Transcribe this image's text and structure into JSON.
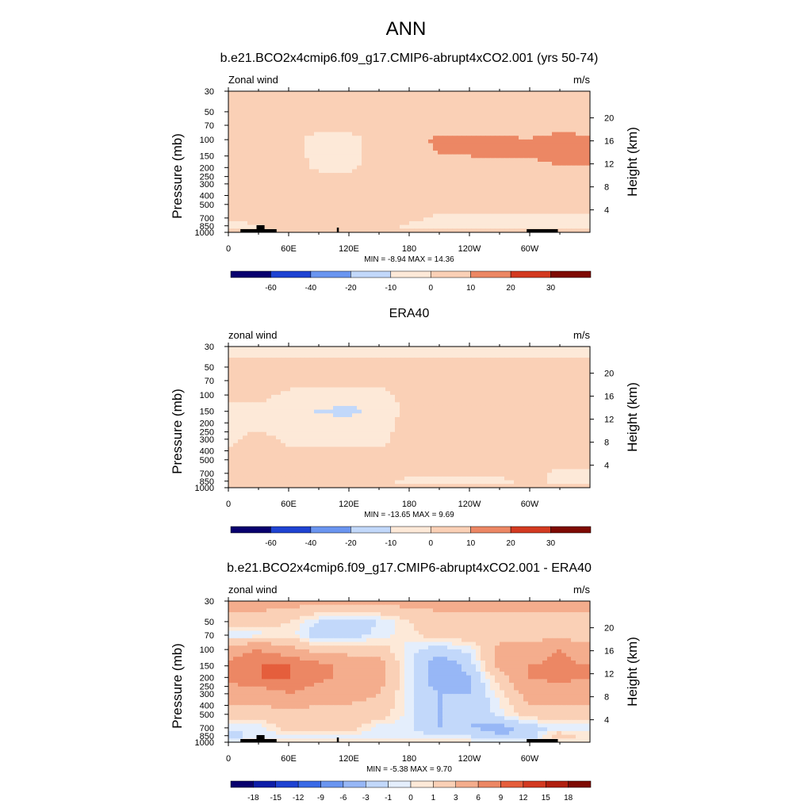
{
  "figure": {
    "title": "ANN"
  },
  "colors": {
    "cmap": [
      "#08006e",
      "#0d1ea8",
      "#1f43d2",
      "#3a6ae6",
      "#6a95f0",
      "#97b7f6",
      "#c2d8fa",
      "#e4eefc",
      "#fde9d8",
      "#fad0b6",
      "#f4ad8d",
      "#ec8764",
      "#e55e3c",
      "#d33a21",
      "#b1200f",
      "#7e0a03"
    ],
    "terrain": "#000000"
  },
  "chart_data": [
    {
      "type": "heatmap",
      "title": "b.e21.BCO2x4cmip6.f09_g17.CMIP6-abrupt4xCO2.001 (yrs 50-74)",
      "left_label": "Zonal wind",
      "units": "m/s",
      "ylabel": "Pressure (mb)",
      "ylabel_right": "Height (km)",
      "xticks": [
        "0",
        "60E",
        "120E",
        "180",
        "120W",
        "60W"
      ],
      "yticks": [
        "30",
        "50",
        "70",
        "100",
        "150",
        "200",
        "250",
        "300",
        "400",
        "500",
        "700",
        "850",
        "1000"
      ],
      "yticks_right": [
        "20",
        "16",
        "12",
        "8",
        "4"
      ],
      "stats": "MIN =  -8.94  MAX =  14.36",
      "levels": [
        "-60",
        "-40",
        "-20",
        "-10",
        "0",
        "10",
        "20",
        "30"
      ],
      "grid_lon": [
        0,
        30,
        60,
        90,
        120,
        150,
        180,
        210,
        240,
        270,
        300,
        330,
        355
      ],
      "grid_p": [
        30,
        50,
        70,
        100,
        150,
        200,
        300,
        500,
        700,
        850,
        1000
      ],
      "u": [
        [
          2,
          2,
          2,
          2,
          2,
          2,
          2,
          2,
          2,
          2,
          2,
          2,
          2
        ],
        [
          3,
          3,
          3,
          3,
          3,
          3,
          4,
          5,
          5,
          5,
          5,
          5,
          5
        ],
        [
          6,
          4,
          3,
          3,
          3,
          3,
          6,
          8,
          8,
          8,
          8,
          8,
          8
        ],
        [
          7,
          5,
          3,
          -3,
          -3,
          3,
          8,
          11,
          11,
          11,
          10,
          12,
          11
        ],
        [
          6,
          5,
          3,
          -2,
          -3,
          3,
          8,
          10,
          10,
          11,
          10,
          13,
          13
        ],
        [
          5,
          7,
          3,
          -1,
          -1,
          3,
          7,
          8,
          8,
          8,
          8,
          9,
          9
        ],
        [
          4,
          3,
          3,
          3,
          3,
          3,
          6,
          6,
          6,
          6,
          5,
          5,
          4
        ],
        [
          3,
          3,
          3,
          3,
          3,
          3,
          3,
          3,
          3,
          3,
          3,
          3,
          3
        ],
        [
          3,
          3,
          6,
          6,
          6,
          4,
          3,
          -2,
          -2,
          -2,
          -2,
          -2,
          -2
        ],
        [
          -3,
          -1,
          3,
          3,
          3,
          3,
          -2,
          -3,
          -3,
          -3,
          -3,
          -2,
          -2
        ],
        [
          3,
          3,
          3,
          3,
          3,
          3,
          3,
          3,
          3,
          3,
          3,
          3,
          3
        ]
      ]
    },
    {
      "type": "heatmap",
      "title": "ERA40",
      "left_label": "zonal wind",
      "units": "m/s",
      "ylabel": "Pressure (mb)",
      "ylabel_right": "Height (km)",
      "xticks": [
        "0",
        "60E",
        "120E",
        "180",
        "120W",
        "60W"
      ],
      "yticks": [
        "30",
        "50",
        "70",
        "100",
        "150",
        "200",
        "250",
        "300",
        "400",
        "500",
        "700",
        "850",
        "1000"
      ],
      "yticks_right": [
        "20",
        "16",
        "12",
        "8",
        "4"
      ],
      "stats": "MIN = -13.65  MAX =   9.69",
      "levels": [
        "-60",
        "-40",
        "-20",
        "-10",
        "0",
        "10",
        "20",
        "30"
      ],
      "grid_lon": [
        0,
        30,
        60,
        90,
        120,
        150,
        180,
        210,
        240,
        270,
        300,
        330,
        355
      ],
      "grid_p": [
        30,
        50,
        70,
        100,
        150,
        200,
        300,
        500,
        700,
        850,
        1000
      ],
      "u": [
        [
          -3,
          -3,
          -3,
          -3,
          -3,
          -3,
          -3,
          -3,
          -3,
          -3,
          -3,
          -3,
          -3
        ],
        [
          3,
          3,
          3,
          3,
          3,
          3,
          3,
          3,
          3,
          3,
          3,
          3,
          3
        ],
        [
          3,
          3,
          3,
          3,
          3,
          3,
          3,
          3,
          3,
          3,
          3,
          3,
          3
        ],
        [
          3,
          3,
          -2,
          -3,
          -4,
          -3,
          3,
          6,
          6,
          6,
          3,
          6,
          3
        ],
        [
          -3,
          -3,
          -6,
          -11,
          -13,
          -6,
          3,
          8,
          9,
          8,
          3,
          7,
          3
        ],
        [
          -3,
          -3,
          -4,
          -6,
          -6,
          -3,
          3,
          6,
          6,
          5,
          3,
          4,
          3
        ],
        [
          -2,
          3,
          -2,
          -2,
          -2,
          -2,
          3,
          3,
          3,
          3,
          3,
          3,
          3
        ],
        [
          3,
          3,
          3,
          3,
          3,
          3,
          3,
          3,
          3,
          3,
          3,
          3,
          3
        ],
        [
          3,
          6,
          6,
          6,
          3,
          3,
          3,
          3,
          3,
          3,
          3,
          -2,
          -2
        ],
        [
          3,
          6,
          6,
          6,
          3,
          3,
          -3,
          -3,
          -3,
          -3,
          3,
          -3,
          -3
        ],
        [
          3,
          3,
          3,
          3,
          3,
          3,
          3,
          3,
          3,
          3,
          3,
          3,
          3
        ]
      ]
    },
    {
      "type": "heatmap",
      "title": "b.e21.BCO2x4cmip6.f09_g17.CMIP6-abrupt4xCO2.001 - ERA40",
      "left_label": "zonal wind",
      "units": "m/s",
      "ylabel": "Pressure (mb)",
      "ylabel_right": "Height (km)",
      "xticks": [
        "0",
        "60E",
        "120E",
        "180",
        "120W",
        "60W"
      ],
      "yticks": [
        "30",
        "50",
        "70",
        "100",
        "150",
        "200",
        "250",
        "300",
        "400",
        "500",
        "700",
        "850",
        "1000"
      ],
      "yticks_right": [
        "20",
        "16",
        "12",
        "8",
        "4"
      ],
      "stats": "MIN =  -5.38  MAX =   9.70",
      "levels": [
        "-18",
        "-15",
        "-12",
        "-9",
        "-6",
        "-3",
        "-1",
        "0",
        "1",
        "3",
        "6",
        "9",
        "12",
        "15",
        "18"
      ],
      "grid_lon": [
        0,
        30,
        60,
        90,
        120,
        150,
        180,
        210,
        240,
        270,
        300,
        330,
        355
      ],
      "grid_p": [
        30,
        50,
        70,
        100,
        150,
        200,
        300,
        500,
        700,
        850,
        1000
      ],
      "u": [
        [
          4,
          4,
          4,
          4,
          4,
          4,
          4,
          4,
          4,
          4,
          4,
          4,
          4
        ],
        [
          2,
          2,
          1,
          -1,
          -2,
          -1,
          1,
          2,
          2,
          2,
          2,
          2,
          2
        ],
        [
          -0.5,
          -0.5,
          0.5,
          -2,
          -2,
          -0.5,
          0.5,
          2,
          2,
          2,
          2,
          2,
          2
        ],
        [
          4,
          6,
          4,
          2,
          2,
          2,
          -0.5,
          -2,
          -0.5,
          4,
          4,
          6,
          4
        ],
        [
          7,
          9,
          9,
          7,
          5,
          4,
          -0.5,
          -5,
          -2,
          4,
          6,
          7,
          6
        ],
        [
          7,
          9,
          9,
          7,
          5,
          4,
          -0.5,
          -5,
          -3,
          2,
          6,
          7,
          6
        ],
        [
          4,
          4,
          6,
          4,
          4,
          3,
          -0.5,
          -3,
          -3,
          0.5,
          4,
          4,
          4
        ],
        [
          2,
          2,
          2,
          2,
          2,
          2,
          -0.5,
          -3,
          -3,
          -0.5,
          2,
          2,
          2
        ],
        [
          -0.5,
          -0.5,
          2,
          2,
          2,
          -0.5,
          -0.5,
          -3,
          -3,
          -4,
          -2,
          -0.5,
          -0.5
        ],
        [
          -2,
          -0.5,
          -0.5,
          -0.5,
          -0.5,
          -0.5,
          -0.5,
          -1,
          -1,
          -3,
          -2,
          2,
          0.5
        ],
        [
          0.5,
          0.5,
          0.5,
          0.5,
          0.5,
          0.5,
          0.5,
          0.5,
          0.5,
          0.5,
          0.5,
          0.5,
          0.5
        ]
      ]
    }
  ]
}
